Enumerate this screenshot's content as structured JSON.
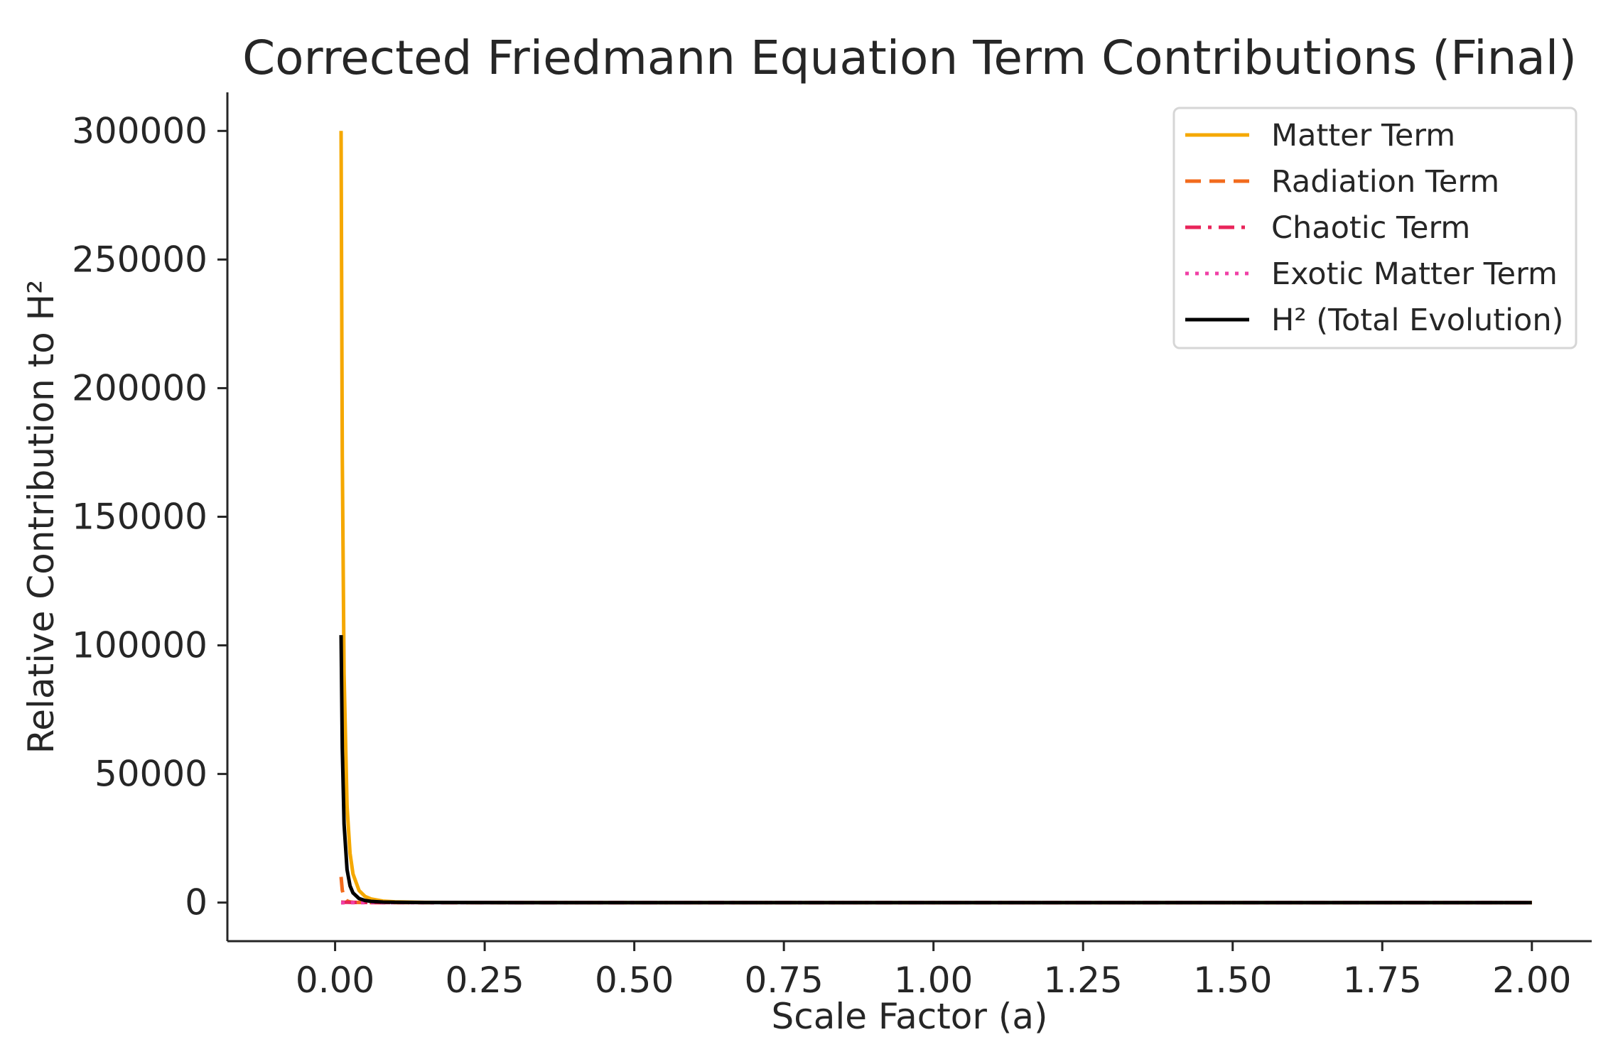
{
  "chart_data": {
    "type": "line",
    "title": "Corrected Friedmann Equation Term Contributions (Final)",
    "xlabel": "Scale Factor (a)",
    "ylabel": "Relative Contribution to H²",
    "xlim": [
      -0.18,
      2.1
    ],
    "ylim": [
      -15000,
      315000
    ],
    "x_ticks": [
      0.0,
      0.25,
      0.5,
      0.75,
      1.0,
      1.25,
      1.5,
      1.75,
      2.0
    ],
    "x_tick_labels": [
      "0.00",
      "0.25",
      "0.50",
      "0.75",
      "1.00",
      "1.25",
      "1.50",
      "1.75",
      "2.00"
    ],
    "y_ticks": [
      0,
      50000,
      100000,
      150000,
      200000,
      250000,
      300000
    ],
    "y_tick_labels": [
      "0",
      "50000",
      "100000",
      "150000",
      "200000",
      "250000",
      "300000"
    ],
    "grid": false,
    "legend_position": "top-right",
    "x": [
      0.01,
      0.012,
      0.015,
      0.02,
      0.025,
      0.03,
      0.04,
      0.05,
      0.06,
      0.08,
      0.1,
      0.15,
      0.2,
      0.3,
      0.5,
      0.75,
      1.0,
      1.25,
      1.5,
      1.75,
      2.0
    ],
    "series": [
      {
        "name": "Matter Term",
        "color": "#f5a800",
        "dash": "solid",
        "values": [
          300000,
          173600,
          88900,
          37500,
          19200,
          11100,
          4690,
          2400,
          1390,
          586,
          300,
          89,
          37.5,
          11.1,
          2.4,
          0.71,
          0.3,
          0.15,
          0.09,
          0.06,
          0.04
        ]
      },
      {
        "name": "Radiation Term",
        "color": "#f26b1d",
        "dash": "dashed",
        "values": [
          10000,
          4820,
          1980,
          625,
          256,
          123,
          39,
          16,
          7.7,
          2.4,
          1.0,
          0.2,
          0.06,
          0.01,
          0.0,
          0.0,
          0.0,
          0.0,
          0.0,
          0.0,
          0.0
        ]
      },
      {
        "name": "Chaotic Term",
        "color": "#e8245a",
        "dash": "dashdot",
        "values": [
          200,
          170,
          140,
          100,
          80,
          65,
          50,
          40,
          33,
          25,
          20,
          13,
          10,
          6.7,
          4,
          2.7,
          2,
          1.6,
          1.3,
          1.1,
          1
        ]
      },
      {
        "name": "Exotic Matter Term",
        "color": "#f03fa6",
        "dash": "dotted",
        "values": [
          -100,
          -80,
          -60,
          -40,
          -30,
          -25,
          -18,
          -14,
          -11,
          -8,
          -6,
          -4,
          -3,
          -2,
          -1,
          -0.7,
          -0.5,
          -0.4,
          -0.3,
          -0.25,
          -0.2
        ]
      },
      {
        "name": "H² (Total Evolution)",
        "color": "#000000",
        "dash": "solid",
        "values": [
          104000,
          60000,
          30500,
          12800,
          6500,
          3750,
          1580,
          810,
          470,
          200,
          102,
          31,
          13,
          4,
          1,
          0.4,
          0.2,
          0.1,
          0.08,
          0.06,
          0.05
        ]
      }
    ]
  }
}
